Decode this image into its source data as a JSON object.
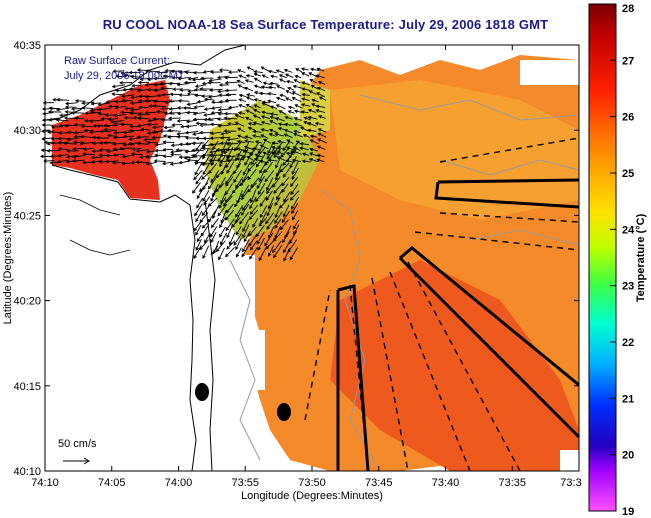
{
  "title": "RU COOL  NOAA-18  Sea Surface Temperature:  July 29, 2006 1818 GMT",
  "legend_text": {
    "line1": "Raw Surface Current:",
    "line2": "July 29, 2006 18:00GMT"
  },
  "scale_label": "50 cm/s",
  "axes": {
    "xlabel": "Longitude (Degrees:Minutes)",
    "ylabel": "Latitude (Degrees:Minutes)",
    "x_ticks": [
      "74:10",
      "74:05",
      "74:00",
      "73:55",
      "73:50",
      "73:45",
      "73:40",
      "73:35",
      "73:3"
    ],
    "y_ticks": [
      "40:35",
      "40:30",
      "40:25",
      "40:20",
      "40:15",
      "40:10"
    ]
  },
  "colorbar": {
    "label": "Temperature (°C)",
    "ticks": [
      "28",
      "27",
      "26",
      "25",
      "24",
      "23",
      "22",
      "21",
      "20",
      "19"
    ],
    "min": 19,
    "max": 28
  },
  "colors": {
    "title": "#1a1a8a",
    "sst_dominant": "#f06020",
    "land": "#ffffff",
    "coastline": "#000000",
    "bathymetry": "#999999"
  }
}
